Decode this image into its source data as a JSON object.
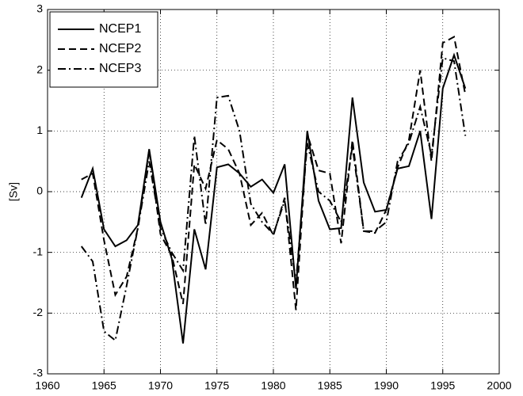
{
  "chart_data": {
    "type": "line",
    "ylabel": "[Sv]",
    "x": [
      1963,
      1964,
      1965,
      1966,
      1967,
      1968,
      1969,
      1970,
      1971,
      1972,
      1973,
      1974,
      1975,
      1976,
      1977,
      1978,
      1979,
      1980,
      1981,
      1982,
      1983,
      1984,
      1985,
      1986,
      1987,
      1988,
      1989,
      1990,
      1991,
      1992,
      1993,
      1994,
      1995,
      1996,
      1997
    ],
    "series": [
      {
        "name": "NCEP1",
        "color": "#000000",
        "dash": "solid",
        "values": [
          -0.1,
          0.38,
          -0.62,
          -0.9,
          -0.8,
          -0.55,
          0.7,
          -0.5,
          -1.1,
          -2.5,
          -0.62,
          -1.28,
          0.4,
          0.45,
          0.3,
          0.08,
          0.2,
          -0.02,
          0.45,
          -1.6,
          1.0,
          -0.15,
          -0.62,
          -0.6,
          1.55,
          0.15,
          -0.33,
          -0.3,
          0.38,
          0.42,
          1.0,
          -0.45,
          1.7,
          2.25,
          1.7
        ]
      },
      {
        "name": "NCEP2",
        "color": "#000000",
        "dash": "dash",
        "values": [
          0.2,
          0.3,
          -0.8,
          -1.7,
          -1.4,
          -0.6,
          0.68,
          -0.7,
          -1.05,
          -1.85,
          0.45,
          0.05,
          0.85,
          0.7,
          0.3,
          -0.55,
          -0.35,
          -0.72,
          -0.1,
          -1.95,
          0.95,
          0.35,
          0.3,
          -0.85,
          0.85,
          -0.65,
          -0.68,
          -0.3,
          0.4,
          0.85,
          2.0,
          0.5,
          2.45,
          2.55,
          1.6
        ]
      },
      {
        "name": "NCEP3",
        "color": "#000000",
        "dash": "dashdot",
        "values": [
          -0.9,
          -1.15,
          -2.3,
          -2.45,
          -1.55,
          -0.6,
          0.5,
          -0.6,
          -1.0,
          -1.3,
          0.92,
          -0.55,
          1.55,
          1.58,
          1.0,
          -0.2,
          -0.5,
          -0.7,
          -0.15,
          -1.5,
          0.8,
          0.0,
          -0.15,
          -0.5,
          0.75,
          -0.65,
          -0.65,
          -0.5,
          0.5,
          0.8,
          1.4,
          0.6,
          2.2,
          2.15,
          0.92
        ]
      }
    ],
    "xlim": [
      1960,
      2000
    ],
    "xticks": [
      1960,
      1965,
      1970,
      1975,
      1980,
      1985,
      1990,
      1995,
      2000
    ],
    "ylim": [
      -3,
      3
    ],
    "yticks": [
      -3,
      -2,
      -1,
      0,
      1,
      2,
      3
    ],
    "grid": true,
    "legend": "upper left"
  }
}
